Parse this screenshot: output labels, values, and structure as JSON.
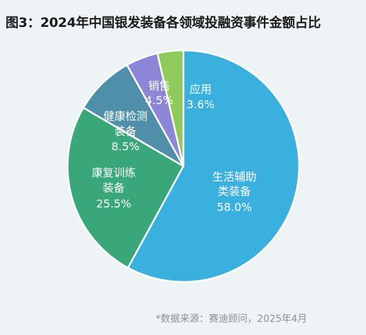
{
  "header": {
    "title": "图3：2024年中国银发装备各领域投融资事件金额占比"
  },
  "footer": {
    "source": "*数据来源：赛迪顾问，2025年4月"
  },
  "chart_data": {
    "type": "pie",
    "title": "图3：2024年中国银发装备各领域投融资事件金额占比",
    "unit": "%",
    "slices": [
      {
        "label": "生活辅助类装备",
        "value": 58.0,
        "label_display": "58.0%",
        "color": "#3ab0df"
      },
      {
        "label": "康复训练装备",
        "value": 25.5,
        "label_display": "25.5%",
        "color": "#39a779"
      },
      {
        "label": "健康检测装备",
        "value": 8.5,
        "label_display": "8.5%",
        "color": "#4f8fa9"
      },
      {
        "label": "销售",
        "value": 4.5,
        "label_display": "4.5%",
        "color": "#8b86d6"
      },
      {
        "label": "应用",
        "value": 3.6,
        "label_display": "3.6%",
        "color": "#8fcb5c"
      }
    ]
  }
}
